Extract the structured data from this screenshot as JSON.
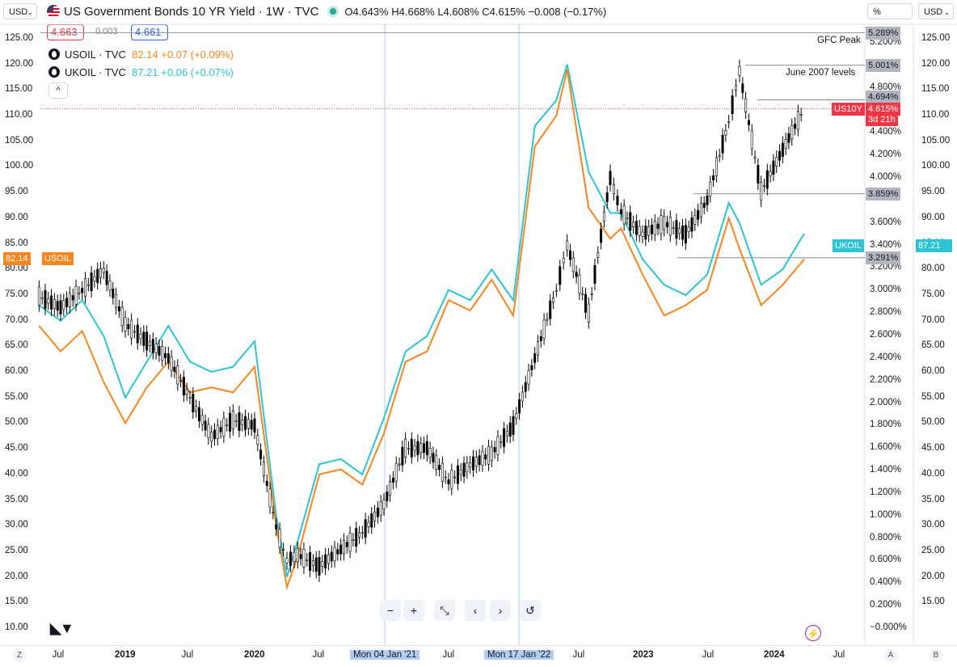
{
  "toolbar": {
    "left_currency": "USD",
    "right_percent": "%",
    "right_currency": "USD",
    "title": "US Government Bonds 10 YR Yield · 1W · TVC",
    "ohlc": "O4.643% H4.668% L4.608% C4.615% −0.008 (−0.17%)",
    "bid": "4.663",
    "spread": "0.003",
    "ask": "4.661",
    "collapse": "^"
  },
  "legend": [
    {
      "name": "USOIL · TVC",
      "value": "82.14 +0.07 (+0.09%)",
      "color": "#f7861f"
    },
    {
      "name": "UKOIL · TVC",
      "value": "87.21 +0.06 (+0.07%)",
      "color": "#2cc4d4"
    }
  ],
  "annotations": {
    "gfc": "GFC Peak",
    "june2007": "June 2007 levels"
  },
  "price_tags": {
    "h1": "5.289%",
    "h2": "5.001%",
    "h3": "4.694%",
    "h4": "3.859%",
    "h5": "3.291%",
    "us10y_name": "US10Y",
    "us10y_value": "4.615%",
    "us10y_time": "3d 21h",
    "ukoil_name": "UKOIL",
    "ukoil_value": "87.21",
    "usoil_value": "82.14",
    "usoil_name": "USOIL"
  },
  "colors": {
    "usoil": "#f7861f",
    "ukoil": "#2cc4d4",
    "yield": "#000000",
    "last": "#f23645",
    "tag_grey": "#787b86"
  },
  "left_axis_ticks": [
    "125.00",
    "120.00",
    "115.00",
    "110.00",
    "105.00",
    "100.00",
    "95.00",
    "90.00",
    "85.00",
    "80.00",
    "75.00",
    "70.00",
    "65.00",
    "60.00",
    "55.00",
    "50.00",
    "45.00",
    "40.00",
    "35.00",
    "30.00",
    "25.00",
    "20.00",
    "15.00",
    "10.00"
  ],
  "pct_axis_ticks": [
    "5.200%",
    "4.800%",
    "4.400%",
    "4.200%",
    "4.000%",
    "3.600%",
    "3.400%",
    "3.200%",
    "3.000%",
    "2.800%",
    "2.600%",
    "2.400%",
    "2.200%",
    "2.000%",
    "1.800%",
    "1.600%",
    "1.400%",
    "1.200%",
    "1.000%",
    "0.800%",
    "0.600%",
    "0.400%",
    "0.200%",
    "−0.000%"
  ],
  "right_axis_ticks": [
    "125.00",
    "120.00",
    "115.00",
    "110.00",
    "105.00",
    "100.00",
    "95.00",
    "90.00",
    "85.00",
    "80.00",
    "75.00",
    "70.00",
    "65.00",
    "60.00",
    "55.00",
    "50.00",
    "45.00",
    "40.00",
    "35.00",
    "30.00",
    "25.00",
    "20.00",
    "15.00"
  ],
  "time_axis": [
    {
      "label": "Jul",
      "year": false
    },
    {
      "label": "2019",
      "year": true
    },
    {
      "label": "Jul",
      "year": false
    },
    {
      "label": "2020",
      "year": true
    },
    {
      "label": "Jul",
      "year": false
    },
    {
      "label": "Mon 04 Jan '21",
      "year": false,
      "highlight": true
    },
    {
      "label": "Jul",
      "year": false
    },
    {
      "label": "Mon 17 Jan '22",
      "year": false,
      "highlight": true
    },
    {
      "label": "Jul",
      "year": false
    },
    {
      "label": "2023",
      "year": true
    },
    {
      "label": "Jul",
      "year": false
    },
    {
      "label": "2024",
      "year": true
    },
    {
      "label": "Jul",
      "year": false
    }
  ],
  "corner_buttons": [
    "Z",
    "A",
    "B"
  ],
  "nav_buttons": [
    "−",
    "+",
    "⤡",
    "‹",
    "›",
    "↺"
  ],
  "chart_data": {
    "type": "line",
    "title": "US Government Bonds 10 YR Yield · 1W · TVC",
    "x": [
      "2018-05",
      "2018-07",
      "2018-09",
      "2018-11",
      "2019-01",
      "2019-03",
      "2019-05",
      "2019-07",
      "2019-09",
      "2019-11",
      "2020-01",
      "2020-03",
      "2020-04",
      "2020-05",
      "2020-07",
      "2020-09",
      "2020-11",
      "2021-01",
      "2021-03",
      "2021-05",
      "2021-07",
      "2021-09",
      "2021-11",
      "2022-01",
      "2022-03",
      "2022-05",
      "2022-06",
      "2022-08",
      "2022-10",
      "2022-11",
      "2023-01",
      "2023-03",
      "2023-05",
      "2023-07",
      "2023-09",
      "2023-10",
      "2023-12",
      "2024-02",
      "2024-04"
    ],
    "series": [
      {
        "name": "USOIL · TVC",
        "axis": "left",
        "values": [
          69,
          64,
          68,
          58,
          50,
          57,
          62,
          56,
          57,
          56,
          61,
          30,
          18,
          24,
          40,
          41,
          38,
          48,
          62,
          64,
          74,
          72,
          78,
          71,
          104,
          110,
          119,
          92,
          86,
          88,
          79,
          71,
          73,
          76,
          90,
          84,
          73,
          77,
          82
        ]
      },
      {
        "name": "UKOIL · TVC",
        "axis": "left",
        "values": [
          73,
          70,
          74,
          67,
          55,
          62,
          69,
          62,
          60,
          61,
          66,
          32,
          20,
          27,
          42,
          43,
          40,
          51,
          64,
          67,
          76,
          74,
          80,
          74,
          108,
          113,
          120,
          99,
          91,
          91,
          82,
          77,
          75,
          79,
          93,
          89,
          77,
          80,
          87
        ]
      },
      {
        "name": "US Government Bonds 10 YR Yield",
        "axis": "percent",
        "values": [
          2.95,
          2.85,
          3.0,
          3.18,
          2.7,
          2.55,
          2.4,
          2.05,
          1.7,
          1.85,
          1.8,
          0.9,
          0.6,
          0.65,
          0.55,
          0.7,
          0.85,
          1.1,
          1.6,
          1.6,
          1.3,
          1.45,
          1.55,
          1.8,
          2.4,
          3.0,
          3.4,
          2.8,
          4.0,
          3.7,
          3.5,
          3.6,
          3.5,
          3.8,
          4.5,
          4.95,
          3.88,
          4.25,
          4.615
        ]
      }
    ],
    "horizontal_levels": [
      5.289,
      5.001,
      4.694,
      3.859,
      3.291
    ],
    "ylim_left": [
      10,
      125
    ],
    "ylim_percent": [
      0,
      5.2
    ]
  }
}
